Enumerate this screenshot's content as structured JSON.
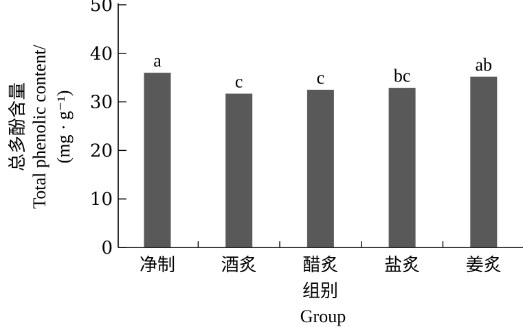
{
  "chart_data": {
    "type": "bar",
    "categories": [
      "净制",
      "酒炙",
      "醋炙",
      "盐炙",
      "姜炙"
    ],
    "values": [
      36.0,
      31.7,
      32.5,
      32.9,
      35.2
    ],
    "significance": [
      "a",
      "c",
      "c",
      "bc",
      "ab"
    ],
    "ylim": [
      0,
      50
    ],
    "yticks": [
      0,
      10,
      20,
      30,
      40,
      50
    ],
    "xlabel_cn": "组别",
    "xlabel_en": "Group",
    "ylabel_cn": "总多酚含量",
    "ylabel_en": "Total phenolic content/",
    "ylabel_unit": "(mg · g⁻¹)",
    "bar_color": "#595959",
    "grid": false
  }
}
